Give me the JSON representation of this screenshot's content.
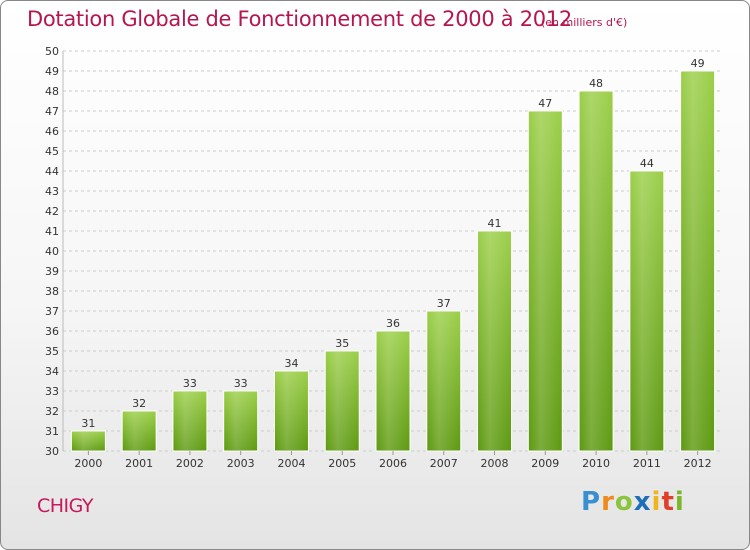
{
  "chart_data": {
    "type": "bar",
    "title": "Dotation Globale de Fonctionnement de 2000 à 2012",
    "subtitle": "(en milliers d'€)",
    "categories": [
      "2000",
      "2001",
      "2002",
      "2003",
      "2004",
      "2005",
      "2006",
      "2007",
      "2008",
      "2009",
      "2010",
      "2011",
      "2012"
    ],
    "values": [
      31,
      32,
      33,
      33,
      34,
      35,
      36,
      37,
      41,
      47,
      48,
      44,
      49
    ],
    "ylim": [
      30,
      50
    ],
    "yticks": [
      30,
      31,
      32,
      33,
      34,
      35,
      36,
      37,
      38,
      39,
      40,
      41,
      42,
      43,
      44,
      45,
      46,
      47,
      48,
      49,
      50
    ],
    "xlabel": "",
    "ylabel": "",
    "grid": true,
    "colors": {
      "bar_top": "#9ccf4a",
      "bar_bottom": "#5e9a12",
      "grid": "#cccccc",
      "title": "#b5164f"
    }
  },
  "footer": {
    "city": "CHIGY",
    "brand_letters": [
      {
        "ch": "P",
        "color": "#3a8fd0"
      },
      {
        "ch": "r",
        "color": "#f08a1c"
      },
      {
        "ch": "o",
        "color": "#8bc43f"
      },
      {
        "ch": "x",
        "color": "#1f6fb8"
      },
      {
        "ch": "i",
        "color": "#f0b41c"
      },
      {
        "ch": "t",
        "color": "#e0402a"
      },
      {
        "ch": "i",
        "color": "#7ab829"
      }
    ]
  }
}
